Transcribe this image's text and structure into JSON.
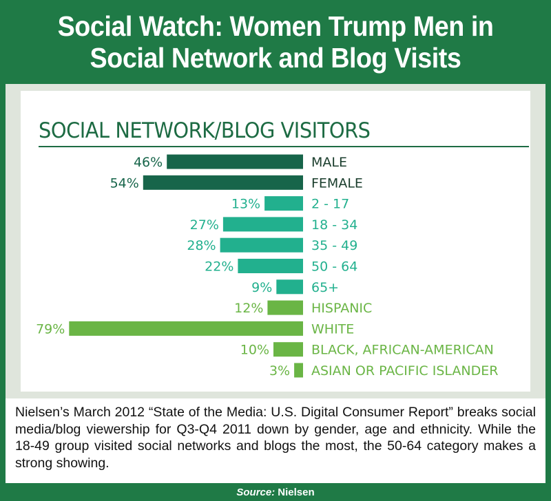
{
  "header": {
    "title": "Social Watch: Women Trump Men in Social Network and Blog Visits"
  },
  "colors": {
    "frame_green": "#1f7a46",
    "gender_bar": "#17654a",
    "age_bar": "#22b08e",
    "ethnicity_bar": "#6ab545",
    "title_green": "#1d6b43"
  },
  "chart_data": {
    "type": "bar",
    "orientation": "horizontal",
    "title": "SOCIAL NETWORK/BLOG VISITORS",
    "categories": [
      "MALE",
      "FEMALE",
      "2 - 17",
      "18 - 34",
      "35 - 49",
      "50 - 64",
      "65+",
      "HISPANIC",
      "WHITE",
      "BLACK, AFRICAN-AMERICAN",
      "ASIAN OR PACIFIC ISLANDER"
    ],
    "values": [
      46,
      54,
      13,
      27,
      28,
      22,
      9,
      12,
      79,
      10,
      3
    ],
    "value_labels": [
      "46%",
      "54%",
      "13%",
      "27%",
      "28%",
      "22%",
      "9%",
      "12%",
      "79%",
      "10%",
      "3%"
    ],
    "groups": [
      "gender",
      "gender",
      "age",
      "age",
      "age",
      "age",
      "age",
      "ethnicity",
      "ethnicity",
      "ethnicity",
      "ethnicity"
    ],
    "unit": "%",
    "xlim": [
      0,
      100
    ],
    "grid": false,
    "legend": "none"
  },
  "description": {
    "text": "Nielsen’s March 2012 “State of the Media: U.S. Digital Consumer Report” breaks social media/blog viewership for Q3-Q4 2011 down by gender, age and ethnicity. While the 18-49 group visited social networks and blogs the most, the 50-64 category makes a strong showing."
  },
  "footer": {
    "source_label": "Source:",
    "source_name": "Nielsen"
  }
}
